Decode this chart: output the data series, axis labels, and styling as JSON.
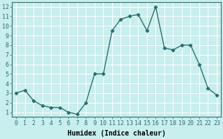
{
  "x": [
    0,
    1,
    2,
    3,
    4,
    5,
    6,
    7,
    8,
    9,
    10,
    11,
    12,
    13,
    14,
    15,
    16,
    17,
    18,
    19,
    20,
    21,
    22,
    23
  ],
  "y": [
    3.0,
    3.3,
    2.2,
    1.7,
    1.5,
    1.5,
    1.0,
    0.8,
    2.0,
    5.0,
    5.0,
    9.5,
    10.7,
    11.0,
    11.2,
    9.5,
    12.0,
    7.7,
    7.5,
    8.0,
    8.0,
    6.0,
    3.5,
    2.8
  ],
  "line_color": "#2e6e6e",
  "marker": "D",
  "marker_size": 2.2,
  "line_width": 1.0,
  "bg_color": "#c8eeee",
  "grid_color": "#ffffff",
  "xlabel": "Humidex (Indice chaleur)",
  "xlabel_fontsize": 7,
  "xlabel_fontweight": "bold",
  "ylabel_ticks": [
    1,
    2,
    3,
    4,
    5,
    6,
    7,
    8,
    9,
    10,
    11,
    12
  ],
  "xlim": [
    -0.5,
    23.5
  ],
  "ylim": [
    0.5,
    12.5
  ],
  "xtick_labels": [
    "0",
    "1",
    "2",
    "3",
    "4",
    "5",
    "6",
    "7",
    "8",
    "9",
    "10",
    "11",
    "12",
    "13",
    "14",
    "15",
    "16",
    "17",
    "18",
    "19",
    "20",
    "21",
    "22",
    "23"
  ],
  "tick_fontsize": 6,
  "font_family": "monospace"
}
